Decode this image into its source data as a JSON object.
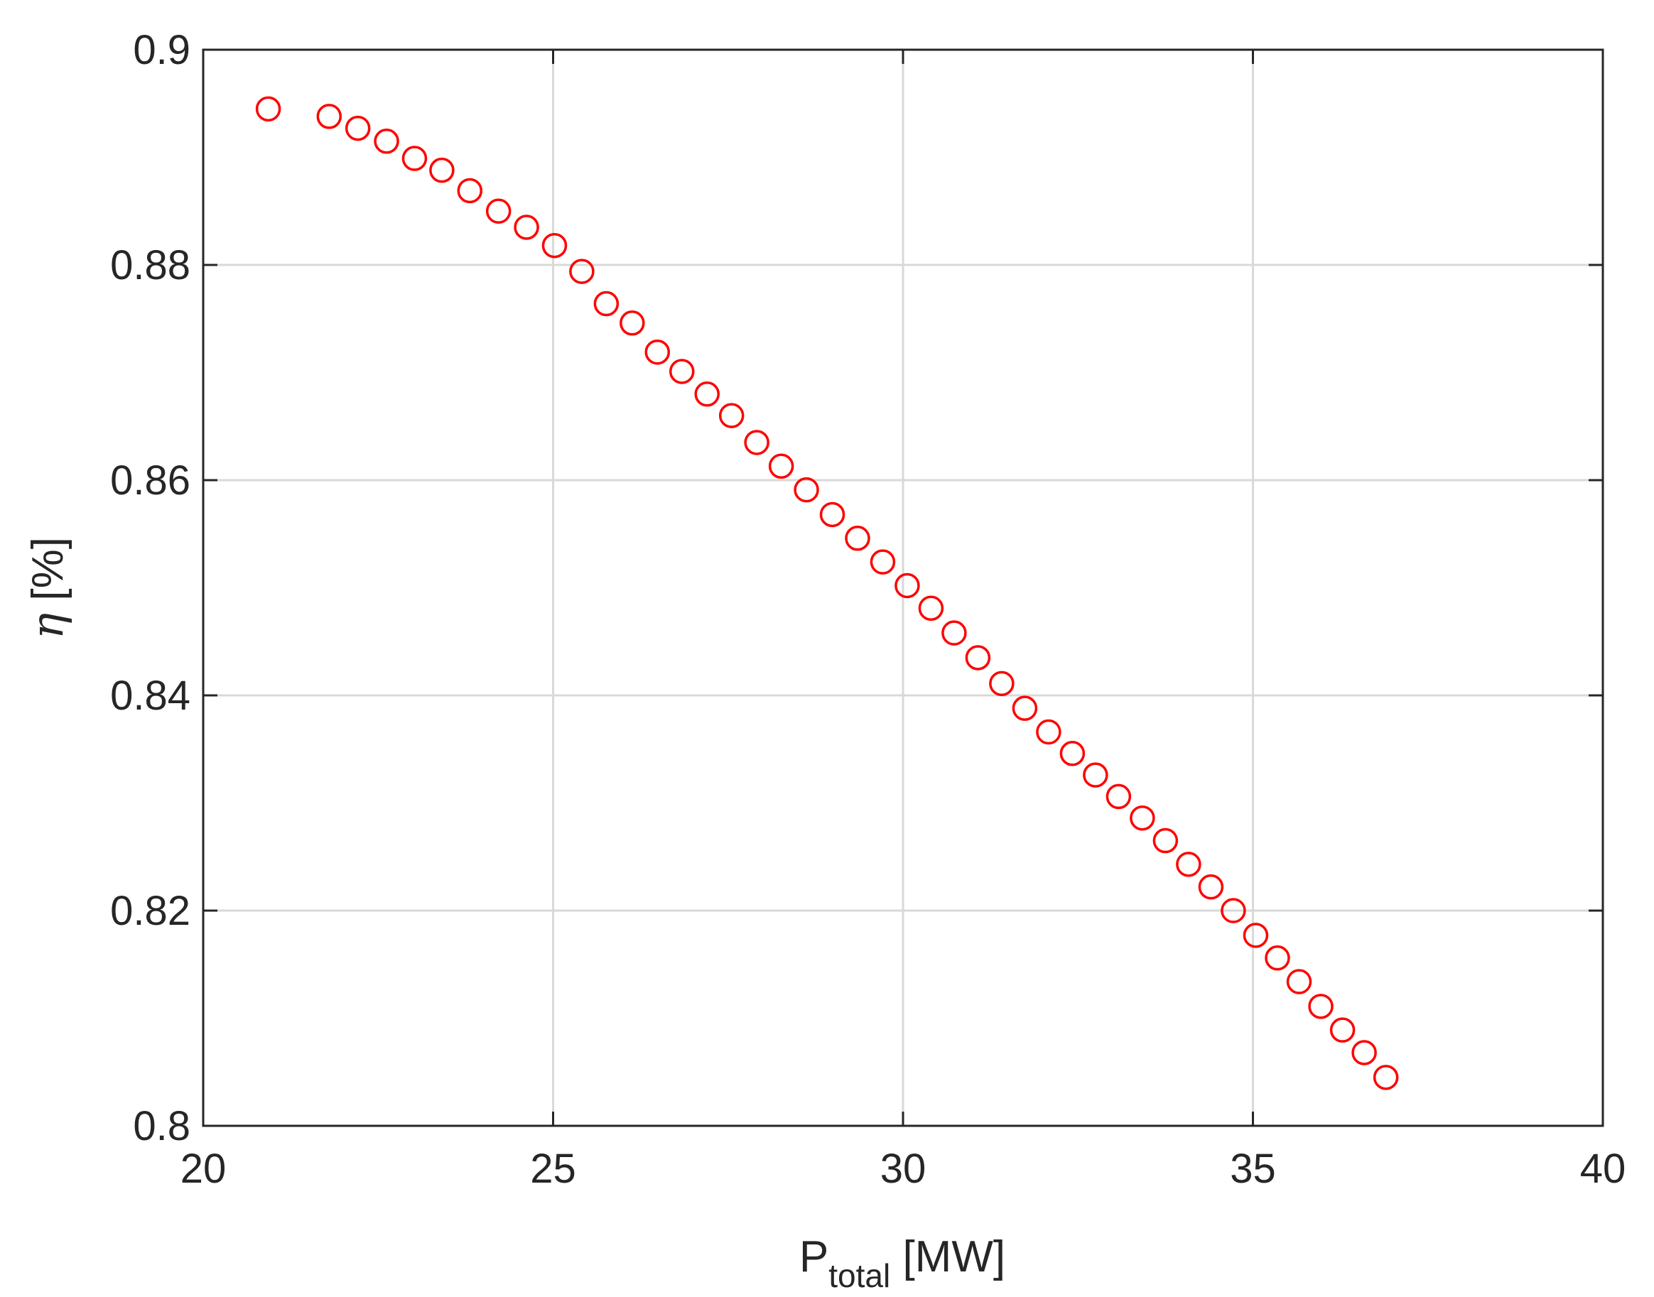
{
  "chart_data": {
    "type": "scatter",
    "xlabel": {
      "main": "P",
      "sub": "total",
      "rest": " [MW]"
    },
    "ylabel": {
      "symbol": "η",
      "rest": " [%]"
    },
    "xlim": [
      20,
      40
    ],
    "ylim": [
      0.8,
      0.9
    ],
    "xticks": [
      "20",
      "25",
      "30",
      "35",
      "40"
    ],
    "yticks": [
      "0.8",
      "0.82",
      "0.84",
      "0.86",
      "0.88",
      "0.9"
    ],
    "grid": true,
    "marker": "circle",
    "marker_color": "#ff0000",
    "series": [
      {
        "x": [
          20.93,
          21.8,
          22.21,
          22.62,
          23.02,
          23.41,
          23.81,
          24.22,
          24.62,
          25.02,
          25.41,
          25.76,
          26.13,
          26.49,
          26.84,
          27.2,
          27.55,
          27.91,
          28.26,
          28.62,
          28.99,
          29.35,
          29.71,
          30.06,
          30.4,
          30.73,
          31.07,
          31.41,
          31.74,
          32.08,
          32.42,
          32.75,
          33.08,
          33.42,
          33.75,
          34.08,
          34.4,
          34.72,
          35.04,
          35.35,
          35.66,
          35.97,
          36.28,
          36.59,
          36.9
        ],
        "y": [
          0.8945,
          0.8938,
          0.8927,
          0.8915,
          0.8899,
          0.8888,
          0.8869,
          0.885,
          0.8835,
          0.8818,
          0.8794,
          0.8764,
          0.8746,
          0.8719,
          0.8701,
          0.868,
          0.866,
          0.8635,
          0.8613,
          0.8591,
          0.8568,
          0.8546,
          0.8524,
          0.8502,
          0.8481,
          0.8458,
          0.8435,
          0.8411,
          0.8388,
          0.8366,
          0.8346,
          0.8326,
          0.8306,
          0.8286,
          0.8265,
          0.8243,
          0.8222,
          0.82,
          0.8177,
          0.8156,
          0.8134,
          0.8111,
          0.8089,
          0.8068,
          0.8045
        ]
      }
    ]
  }
}
